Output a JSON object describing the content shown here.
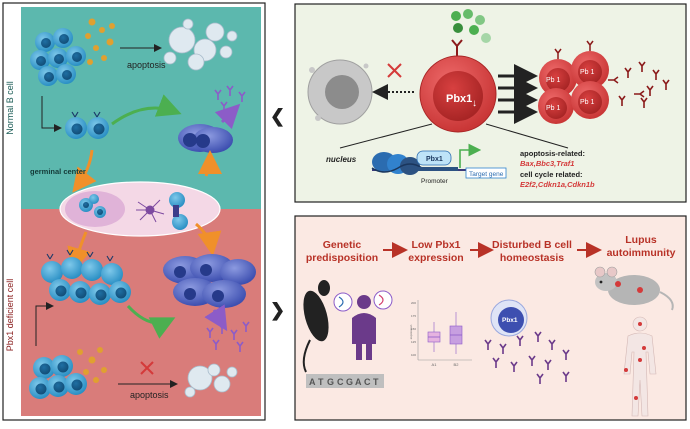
{
  "left_panel": {
    "normal_label": "Normal B cell",
    "deficient_label": "Pbx1 deficient cell",
    "apoptosis_top": "apoptosis",
    "germinal_center": "germinal center",
    "apoptosis_bottom": "apoptosis"
  },
  "top_right": {
    "pbx1_label": "Pbx1",
    "pbx1_arrow": "↓",
    "small_cell_label": "Pb 1",
    "nucleus_label": "nucleus",
    "pbx1_protein": "Pbx1",
    "promoter": "Promoter",
    "target_gene": "Target gene",
    "apoptosis_related": "apoptosis-related:",
    "apoptosis_genes": "Bax,Bbc3,Traf1",
    "cell_cycle_related": "cell cycle related:",
    "cell_cycle_genes": "E2f2,Cdkn1a,Cdkn1b"
  },
  "bottom_right": {
    "step1_line1": "Genetic",
    "step1_line2": "predisposition",
    "step2_line1": "Low Pbx1",
    "step2_line2": "expression",
    "step3_line1": "Disturbed B cell",
    "step3_line2": "homeostasis",
    "step4_line1": "Lupus",
    "step4_line2": "autoimmunity",
    "dna_letters": [
      "A",
      "T",
      "G",
      "C",
      "G",
      "A",
      "C",
      "T"
    ],
    "mini_cell_label": "Pbx1",
    "mini_chart_xlabels": [
      "A1",
      "B2"
    ],
    "mini_chart_ylabel": "expression",
    "mini_chart_yticks": [
      "200",
      "175",
      "150",
      "125",
      "100"
    ]
  },
  "colors": {
    "teal": "#5cb8ae",
    "salmon": "#d97c7a",
    "red_cell": "#d64545",
    "top_right_bg": "#eef3e6",
    "bottom_right_bg": "#fbe9e3",
    "title_red": "#b83227",
    "green_arrow": "#4caf50",
    "orange_arrow": "#f0902a",
    "purple_arrow": "#8c5cc8"
  },
  "nav": {
    "left": "❮",
    "right": "❯"
  }
}
